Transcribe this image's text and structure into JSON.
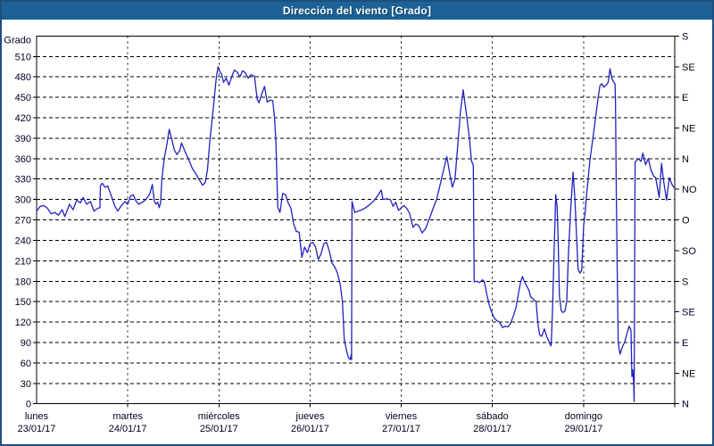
{
  "window": {
    "title": "Dirección del viento [Grado]"
  },
  "colors": {
    "titlebar_bg": "#1c6296",
    "titlebar_text": "#ffffff",
    "frame_border": "#1e4e7e",
    "axis_text": "#000020",
    "grid": "#000000",
    "plot_bg": "#ffffff",
    "series_line": "#2121bf"
  },
  "chart_data": {
    "type": "line",
    "title": "Dirección del viento [Grado]",
    "grid": true,
    "legend": "none",
    "y_axis_left": {
      "label": "Grado",
      "min": 0,
      "max": 540,
      "tick_step": 30,
      "tick_labels": [
        "0",
        "30",
        "60",
        "90",
        "120",
        "150",
        "180",
        "210",
        "240",
        "270",
        "300",
        "330",
        "360",
        "390",
        "420",
        "450",
        "480",
        "510"
      ]
    },
    "y_axis_right": {
      "unit": "compass",
      "tick_step_degrees": 45,
      "labels_bottom_to_top": [
        "N",
        "NE",
        "E",
        "SE",
        "S",
        "SO",
        "O",
        "NO",
        "N",
        "NE",
        "E",
        "SE",
        "S"
      ]
    },
    "x_axis": {
      "days": [
        {
          "name": "lunes",
          "date": "23/01/17"
        },
        {
          "name": "martes",
          "date": "24/01/17"
        },
        {
          "name": "miércoles",
          "date": "25/01/17"
        },
        {
          "name": "jueves",
          "date": "26/01/17"
        },
        {
          "name": "viernes",
          "date": "27/01/17"
        },
        {
          "name": "sábado",
          "date": "28/01/17"
        },
        {
          "name": "domingo",
          "date": "29/01/17"
        }
      ]
    },
    "series": [
      {
        "name": "Dirección del viento",
        "color": "#2121bf",
        "points_day_value": [
          [
            0.0,
            283
          ],
          [
            0.04,
            290
          ],
          [
            0.08,
            291
          ],
          [
            0.12,
            287
          ],
          [
            0.16,
            279
          ],
          [
            0.2,
            281
          ],
          [
            0.24,
            277
          ],
          [
            0.28,
            285
          ],
          [
            0.31,
            275
          ],
          [
            0.36,
            293
          ],
          [
            0.4,
            285
          ],
          [
            0.44,
            299
          ],
          [
            0.48,
            295
          ],
          [
            0.51,
            303
          ],
          [
            0.55,
            293
          ],
          [
            0.59,
            297
          ],
          [
            0.63,
            283
          ],
          [
            0.67,
            287
          ],
          [
            0.695,
            288
          ],
          [
            0.7,
            320
          ],
          [
            0.72,
            324
          ],
          [
            0.75,
            318
          ],
          [
            0.78,
            320
          ],
          [
            0.82,
            305
          ],
          [
            0.86,
            290
          ],
          [
            0.89,
            283
          ],
          [
            0.93,
            291
          ],
          [
            0.97,
            297
          ],
          [
            1.0,
            293
          ],
          [
            1.03,
            305
          ],
          [
            1.06,
            307
          ],
          [
            1.09,
            298
          ],
          [
            1.12,
            293
          ],
          [
            1.16,
            296
          ],
          [
            1.2,
            300
          ],
          [
            1.24,
            308
          ],
          [
            1.27,
            322
          ],
          [
            1.29,
            298
          ],
          [
            1.31,
            293
          ],
          [
            1.33,
            296
          ],
          [
            1.345,
            288
          ],
          [
            1.36,
            295
          ],
          [
            1.375,
            330
          ],
          [
            1.4,
            360
          ],
          [
            1.43,
            382
          ],
          [
            1.455,
            403
          ],
          [
            1.48,
            390
          ],
          [
            1.51,
            373
          ],
          [
            1.54,
            366
          ],
          [
            1.57,
            372
          ],
          [
            1.59,
            383
          ],
          [
            1.63,
            370
          ],
          [
            1.67,
            358
          ],
          [
            1.71,
            345
          ],
          [
            1.75,
            337
          ],
          [
            1.79,
            328
          ],
          [
            1.82,
            321
          ],
          [
            1.85,
            325
          ],
          [
            1.875,
            344
          ],
          [
            1.9,
            386
          ],
          [
            1.925,
            416
          ],
          [
            1.95,
            450
          ],
          [
            1.97,
            477
          ],
          [
            1.99,
            495
          ],
          [
            2.01,
            488
          ],
          [
            2.03,
            484
          ],
          [
            2.05,
            472
          ],
          [
            2.08,
            478
          ],
          [
            2.11,
            468
          ],
          [
            2.14,
            480
          ],
          [
            2.17,
            490
          ],
          [
            2.2,
            487
          ],
          [
            2.23,
            480
          ],
          [
            2.26,
            489
          ],
          [
            2.29,
            486
          ],
          [
            2.32,
            478
          ],
          [
            2.35,
            483
          ],
          [
            2.39,
            481
          ],
          [
            2.42,
            447
          ],
          [
            2.44,
            442
          ],
          [
            2.47,
            455
          ],
          [
            2.5,
            466
          ],
          [
            2.53,
            443
          ],
          [
            2.56,
            446
          ],
          [
            2.59,
            445
          ],
          [
            2.61,
            420
          ],
          [
            2.625,
            386
          ],
          [
            2.635,
            340
          ],
          [
            2.645,
            289
          ],
          [
            2.67,
            281
          ],
          [
            2.7,
            309
          ],
          [
            2.73,
            307
          ],
          [
            2.76,
            295
          ],
          [
            2.79,
            287
          ],
          [
            2.82,
            264
          ],
          [
            2.85,
            253
          ],
          [
            2.88,
            252
          ],
          [
            2.91,
            215
          ],
          [
            2.94,
            230
          ],
          [
            2.97,
            222
          ],
          [
            3.0,
            235
          ],
          [
            3.03,
            237
          ],
          [
            3.06,
            230
          ],
          [
            3.09,
            212
          ],
          [
            3.12,
            220
          ],
          [
            3.15,
            235
          ],
          [
            3.18,
            237
          ],
          [
            3.21,
            225
          ],
          [
            3.24,
            207
          ],
          [
            3.27,
            201
          ],
          [
            3.3,
            192
          ],
          [
            3.33,
            176
          ],
          [
            3.355,
            150
          ],
          [
            3.375,
            95
          ],
          [
            3.4,
            78
          ],
          [
            3.42,
            68
          ],
          [
            3.44,
            65
          ],
          [
            3.45,
            72
          ],
          [
            3.455,
            65
          ],
          [
            3.46,
            297
          ],
          [
            3.49,
            281
          ],
          [
            3.53,
            283
          ],
          [
            3.57,
            285
          ],
          [
            3.61,
            288
          ],
          [
            3.65,
            292
          ],
          [
            3.7,
            298
          ],
          [
            3.74,
            305
          ],
          [
            3.78,
            314
          ],
          [
            3.8,
            300
          ],
          [
            3.84,
            301
          ],
          [
            3.88,
            300
          ],
          [
            3.91,
            290
          ],
          [
            3.94,
            296
          ],
          [
            3.97,
            284
          ],
          [
            4.0,
            288
          ],
          [
            4.03,
            291
          ],
          [
            4.06,
            287
          ],
          [
            4.09,
            280
          ],
          [
            4.13,
            259
          ],
          [
            4.16,
            264
          ],
          [
            4.19,
            262
          ],
          [
            4.23,
            251
          ],
          [
            4.27,
            258
          ],
          [
            4.31,
            272
          ],
          [
            4.35,
            287
          ],
          [
            4.39,
            301
          ],
          [
            4.42,
            318
          ],
          [
            4.45,
            335
          ],
          [
            4.48,
            352
          ],
          [
            4.5,
            363
          ],
          [
            4.53,
            340
          ],
          [
            4.56,
            318
          ],
          [
            4.59,
            330
          ],
          [
            4.62,
            380
          ],
          [
            4.65,
            430
          ],
          [
            4.68,
            461
          ],
          [
            4.7,
            440
          ],
          [
            4.72,
            421
          ],
          [
            4.75,
            387
          ],
          [
            4.77,
            357
          ],
          [
            4.79,
            350
          ],
          [
            4.8,
            179
          ],
          [
            4.83,
            180
          ],
          [
            4.86,
            178
          ],
          [
            4.89,
            182
          ],
          [
            4.91,
            180
          ],
          [
            4.94,
            160
          ],
          [
            4.97,
            143
          ],
          [
            4.99,
            135
          ],
          [
            5.02,
            126
          ],
          [
            5.05,
            122
          ],
          [
            5.08,
            120
          ],
          [
            5.11,
            112
          ],
          [
            5.14,
            114
          ],
          [
            5.17,
            113
          ],
          [
            5.2,
            118
          ],
          [
            5.23,
            129
          ],
          [
            5.26,
            142
          ],
          [
            5.29,
            165
          ],
          [
            5.31,
            179
          ],
          [
            5.33,
            187
          ],
          [
            5.35,
            180
          ],
          [
            5.38,
            172
          ],
          [
            5.4,
            167
          ],
          [
            5.42,
            157
          ],
          [
            5.44,
            155
          ],
          [
            5.46,
            152
          ],
          [
            5.48,
            150
          ],
          [
            5.5,
            116
          ],
          [
            5.52,
            101
          ],
          [
            5.54,
            99
          ],
          [
            5.57,
            110
          ],
          [
            5.6,
            97
          ],
          [
            5.62,
            92
          ],
          [
            5.63,
            88
          ],
          [
            5.645,
            85
          ],
          [
            5.66,
            140
          ],
          [
            5.68,
            240
          ],
          [
            5.695,
            307
          ],
          [
            5.71,
            290
          ],
          [
            5.72,
            245
          ],
          [
            5.735,
            158
          ],
          [
            5.755,
            137
          ],
          [
            5.775,
            134
          ],
          [
            5.795,
            136
          ],
          [
            5.815,
            150
          ],
          [
            5.835,
            222
          ],
          [
            5.86,
            290
          ],
          [
            5.885,
            340
          ],
          [
            5.905,
            300
          ],
          [
            5.925,
            240
          ],
          [
            5.94,
            198
          ],
          [
            5.96,
            192
          ],
          [
            5.98,
            196
          ],
          [
            6.0,
            261
          ],
          [
            6.02,
            284
          ],
          [
            6.03,
            302
          ],
          [
            6.07,
            358
          ],
          [
            6.1,
            388
          ],
          [
            6.13,
            418
          ],
          [
            6.16,
            450
          ],
          [
            6.18,
            467
          ],
          [
            6.2,
            470
          ],
          [
            6.22,
            465
          ],
          [
            6.25,
            468
          ],
          [
            6.27,
            472
          ],
          [
            6.29,
            492
          ],
          [
            6.31,
            478
          ],
          [
            6.33,
            472
          ],
          [
            6.345,
            470
          ],
          [
            6.35,
            448
          ],
          [
            6.36,
            300
          ],
          [
            6.37,
            194
          ],
          [
            6.38,
            90
          ],
          [
            6.4,
            73
          ],
          [
            6.43,
            85
          ],
          [
            6.45,
            90
          ],
          [
            6.48,
            105
          ],
          [
            6.5,
            114
          ],
          [
            6.52,
            108
          ],
          [
            6.53,
            40
          ],
          [
            6.54,
            50
          ],
          [
            6.55,
            30
          ],
          [
            6.555,
            3
          ],
          [
            6.565,
            355
          ],
          [
            6.6,
            360
          ],
          [
            6.63,
            356
          ],
          [
            6.65,
            368
          ],
          [
            6.68,
            351
          ],
          [
            6.71,
            360
          ],
          [
            6.74,
            343
          ],
          [
            6.77,
            334
          ],
          [
            6.79,
            332
          ],
          [
            6.83,
            303
          ],
          [
            6.855,
            353
          ],
          [
            6.88,
            326
          ],
          [
            6.91,
            299
          ],
          [
            6.94,
            332
          ],
          [
            6.97,
            322
          ],
          [
            6.99,
            318
          ]
        ]
      }
    ]
  }
}
